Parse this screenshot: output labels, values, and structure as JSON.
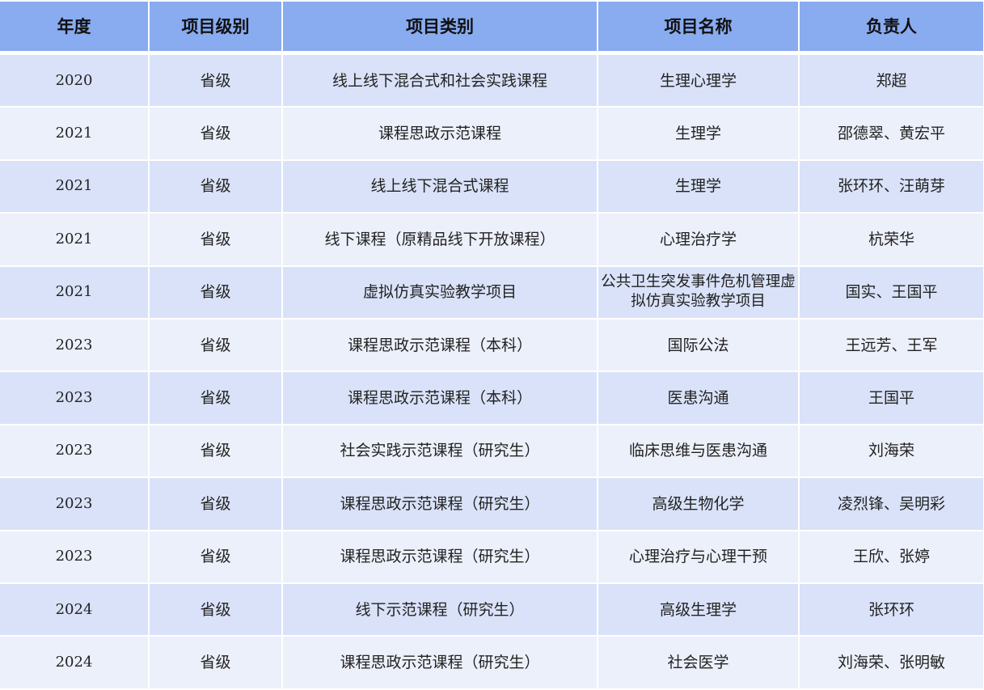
{
  "table": {
    "headers": [
      "年度",
      "项目级别",
      "项目类别",
      "项目名称",
      "负责人"
    ],
    "rows": [
      [
        "2020",
        "省级",
        "线上线下混合式和社会实践课程",
        "生理心理学",
        "郑超"
      ],
      [
        "2021",
        "省级",
        "课程思政示范课程",
        "生理学",
        "邵德翠、黄宏平"
      ],
      [
        "2021",
        "省级",
        "线上线下混合式课程",
        "生理学",
        "张环环、汪萌芽"
      ],
      [
        "2021",
        "省级",
        "线下课程（原精品线下开放课程）",
        "心理治疗学",
        "杭荣华"
      ],
      [
        "2021",
        "省级",
        "虚拟仿真实验教学项目",
        "公共卫生突发事件危机管理虚拟仿真实验教学项目",
        "国实、王国平"
      ],
      [
        "2023",
        "省级",
        "课程思政示范课程（本科）",
        "国际公法",
        "王远芳、王军"
      ],
      [
        "2023",
        "省级",
        "课程思政示范课程（本科）",
        "医患沟通",
        "王国平"
      ],
      [
        "2023",
        "省级",
        "社会实践示范课程（研究生）",
        "临床思维与医患沟通",
        "刘海荣"
      ],
      [
        "2023",
        "省级",
        "课程思政示范课程（研究生）",
        "高级生物化学",
        "凌烈锋、吴明彩"
      ],
      [
        "2023",
        "省级",
        "课程思政示范课程（研究生）",
        "心理治疗与心理干预",
        "王欣、张婷"
      ],
      [
        "2024",
        "省级",
        "线下示范课程（研究生）",
        "高级生理学",
        "张环环"
      ],
      [
        "2024",
        "省级",
        "课程思政示范课程（研究生）",
        "社会医学",
        "刘海荣、张明敏"
      ]
    ]
  },
  "colors": {
    "header": "#89abf0",
    "row_odd": "#d9e2f8",
    "row_even": "#ecf0fb"
  }
}
